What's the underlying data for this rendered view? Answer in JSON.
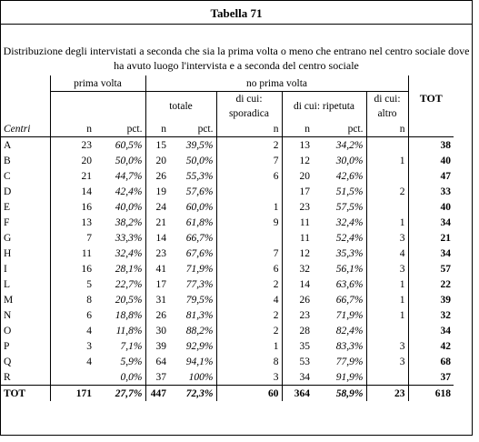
{
  "title": "Tabella 71",
  "subtitle": "Distribuzione degli intervistati a seconda che sia la prima volta o meno che entrano nel centro sociale dove ha avuto luogo l'intervista e a seconda del centro sociale",
  "headers": {
    "prima_volta": "prima volta",
    "no_prima_volta": "no prima volta",
    "totale": "totale",
    "sporadica": "di cui: sporadica",
    "ripetuta": "di cui: ripetuta",
    "altro": "di cui: altro",
    "tot": "TOT",
    "centri": "Centri",
    "n": "n",
    "pct": "pct."
  },
  "rows": [
    {
      "c": "A",
      "pn": "23",
      "pp": "60,5%",
      "tn": "15",
      "tp": "39,5%",
      "sn": "2",
      "rn": "13",
      "rp": "34,2%",
      "an": "",
      "tot": "38"
    },
    {
      "c": "B",
      "pn": "20",
      "pp": "50,0%",
      "tn": "20",
      "tp": "50,0%",
      "sn": "7",
      "rn": "12",
      "rp": "30,0%",
      "an": "1",
      "tot": "40"
    },
    {
      "c": "C",
      "pn": "21",
      "pp": "44,7%",
      "tn": "26",
      "tp": "55,3%",
      "sn": "6",
      "rn": "20",
      "rp": "42,6%",
      "an": "",
      "tot": "47"
    },
    {
      "c": "D",
      "pn": "14",
      "pp": "42,4%",
      "tn": "19",
      "tp": "57,6%",
      "sn": "",
      "rn": "17",
      "rp": "51,5%",
      "an": "2",
      "tot": "33"
    },
    {
      "c": "E",
      "pn": "16",
      "pp": "40,0%",
      "tn": "24",
      "tp": "60,0%",
      "sn": "1",
      "rn": "23",
      "rp": "57,5%",
      "an": "",
      "tot": "40"
    },
    {
      "c": "F",
      "pn": "13",
      "pp": "38,2%",
      "tn": "21",
      "tp": "61,8%",
      "sn": "9",
      "rn": "11",
      "rp": "32,4%",
      "an": "1",
      "tot": "34"
    },
    {
      "c": "G",
      "pn": "7",
      "pp": "33,3%",
      "tn": "14",
      "tp": "66,7%",
      "sn": "",
      "rn": "11",
      "rp": "52,4%",
      "an": "3",
      "tot": "21"
    },
    {
      "c": "H",
      "pn": "11",
      "pp": "32,4%",
      "tn": "23",
      "tp": "67,6%",
      "sn": "7",
      "rn": "12",
      "rp": "35,3%",
      "an": "4",
      "tot": "34"
    },
    {
      "c": "I",
      "pn": "16",
      "pp": "28,1%",
      "tn": "41",
      "tp": "71,9%",
      "sn": "6",
      "rn": "32",
      "rp": "56,1%",
      "an": "3",
      "tot": "57"
    },
    {
      "c": "L",
      "pn": "5",
      "pp": "22,7%",
      "tn": "17",
      "tp": "77,3%",
      "sn": "2",
      "rn": "14",
      "rp": "63,6%",
      "an": "1",
      "tot": "22"
    },
    {
      "c": "M",
      "pn": "8",
      "pp": "20,5%",
      "tn": "31",
      "tp": "79,5%",
      "sn": "4",
      "rn": "26",
      "rp": "66,7%",
      "an": "1",
      "tot": "39"
    },
    {
      "c": "N",
      "pn": "6",
      "pp": "18,8%",
      "tn": "26",
      "tp": "81,3%",
      "sn": "2",
      "rn": "23",
      "rp": "71,9%",
      "an": "1",
      "tot": "32"
    },
    {
      "c": "O",
      "pn": "4",
      "pp": "11,8%",
      "tn": "30",
      "tp": "88,2%",
      "sn": "2",
      "rn": "28",
      "rp": "82,4%",
      "an": "",
      "tot": "34"
    },
    {
      "c": "P",
      "pn": "3",
      "pp": "7,1%",
      "tn": "39",
      "tp": "92,9%",
      "sn": "1",
      "rn": "35",
      "rp": "83,3%",
      "an": "3",
      "tot": "42"
    },
    {
      "c": "Q",
      "pn": "4",
      "pp": "5,9%",
      "tn": "64",
      "tp": "94,1%",
      "sn": "8",
      "rn": "53",
      "rp": "77,9%",
      "an": "3",
      "tot": "68"
    },
    {
      "c": "R",
      "pn": "",
      "pp": "0,0%",
      "tn": "37",
      "tp": "100%",
      "sn": "3",
      "rn": "34",
      "rp": "91,9%",
      "an": "",
      "tot": "37"
    }
  ],
  "total_row": {
    "c": "TOT",
    "pn": "171",
    "pp": "27,7%",
    "tn": "447",
    "tp": "72,3%",
    "sn": "60",
    "rn": "364",
    "rp": "58,9%",
    "an": "23",
    "tot": "618"
  }
}
